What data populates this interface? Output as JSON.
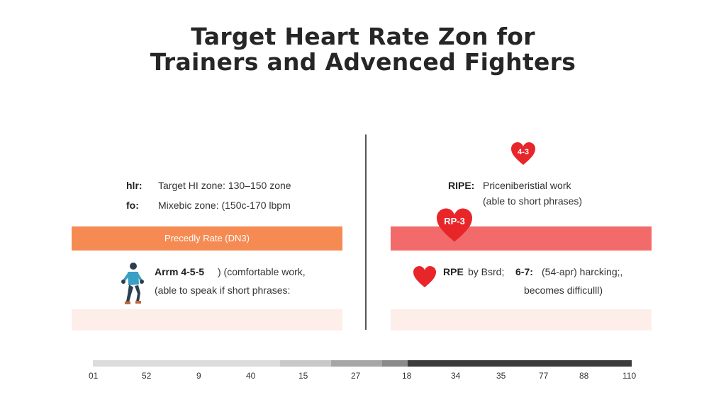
{
  "title": {
    "line1": "Target Heart Rate Zon for",
    "line2": "Trainers and Advenced Fighters"
  },
  "left_panel": {
    "row1": {
      "label": "hlr:",
      "text": "Target HI zone: 130–150 zone"
    },
    "row2": {
      "label": "fo:",
      "text": "Mixebic zone: (150c-170 lbpm"
    },
    "bar_label": "Precedly Rate (DN3)",
    "note": {
      "label": "Arrm 4-5-5",
      "text_line1": ") (comfortable work,",
      "text_line2": "(able to speak if short phrases:"
    },
    "icon": "runner-icon"
  },
  "right_panel": {
    "heart_badge_top": "4-3",
    "row1": {
      "label": "RIPE:",
      "text_line1": "Priceniberistial work",
      "text_line2": "(able to short phrases)"
    },
    "heart_badge_bar": "RP-3",
    "note": {
      "label1": "RPE",
      "text_mid": "by Bsrd;",
      "label2": "6-7:",
      "text_line1": "(54-apr) harcking;,",
      "text_line2": "becomes difficulll)"
    },
    "icon": "heart-icon"
  },
  "colors": {
    "left_bar": "#f58b53",
    "right_bar": "#f26a6a",
    "heart": "#e8262a",
    "pale_band": "#fdeeea"
  },
  "scale": {
    "ticks": [
      "01",
      "52",
      "9",
      "40",
      "15",
      "27",
      "18",
      "34",
      "35",
      "77",
      "88",
      "110"
    ]
  }
}
